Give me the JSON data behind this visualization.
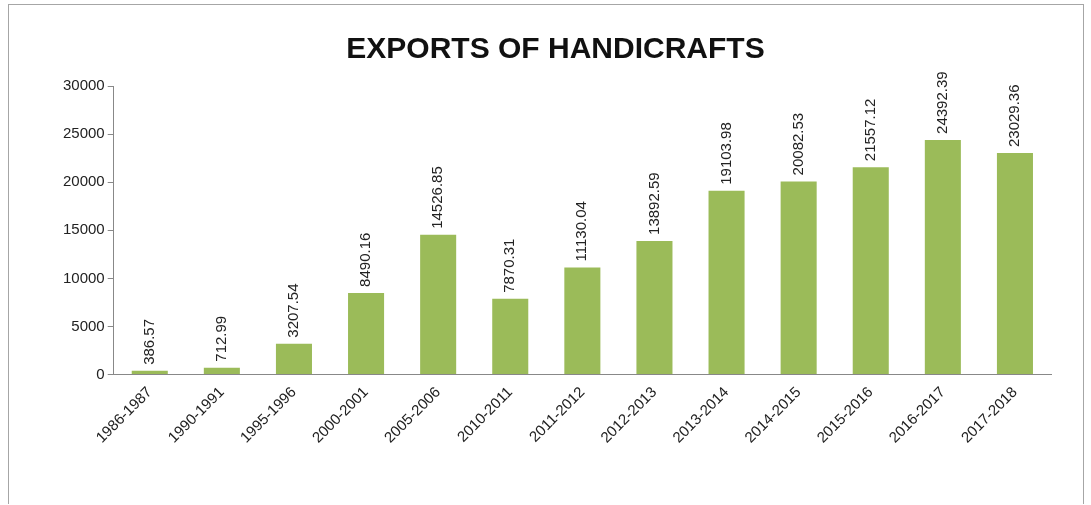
{
  "chart_data": {
    "type": "bar",
    "title": "EXPORTS OF HANDICRAFTS",
    "categories": [
      "1986-1987",
      "1990-1991",
      "1995-1996",
      "2000-2001",
      "2005-2006",
      "2010-2011",
      "2011-2012",
      "2012-2013",
      "2013-2014",
      "2014-2015",
      "2015-2016",
      "2016-2017",
      "2017-2018"
    ],
    "values": [
      386.57,
      712.99,
      3207.54,
      8490.16,
      14526.85,
      7870.31,
      11130.04,
      13892.59,
      19103.98,
      20082.53,
      21557.12,
      24392.39,
      23029.36
    ],
    "color": "#9bbb59",
    "ylim": [
      0,
      30000
    ],
    "yticks": [
      0,
      5000,
      10000,
      15000,
      20000,
      25000,
      30000
    ],
    "grid": false,
    "legend": false,
    "data_labels": true
  }
}
